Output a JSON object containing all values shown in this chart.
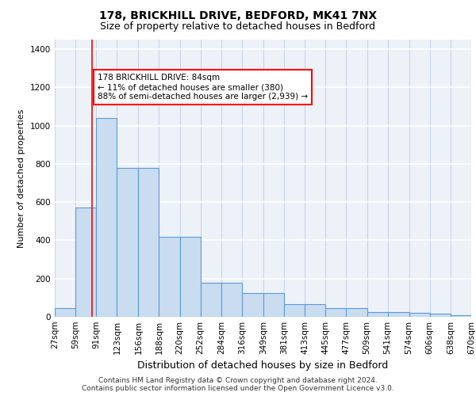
{
  "title1": "178, BRICKHILL DRIVE, BEDFORD, MK41 7NX",
  "title2": "Size of property relative to detached houses in Bedford",
  "xlabel": "Distribution of detached houses by size in Bedford",
  "ylabel": "Number of detached properties",
  "footer": "Contains HM Land Registry data © Crown copyright and database right 2024.\nContains public sector information licensed under the Open Government Licence v3.0.",
  "bin_edges": [
    27,
    59,
    91,
    123,
    156,
    188,
    220,
    252,
    284,
    316,
    349,
    381,
    413,
    445,
    477,
    509,
    541,
    574,
    606,
    638,
    670
  ],
  "bar_heights": [
    45,
    570,
    1040,
    780,
    780,
    420,
    420,
    180,
    180,
    125,
    125,
    65,
    65,
    45,
    45,
    25,
    25,
    20,
    15,
    10
  ],
  "bar_color": "#c9dcf0",
  "bar_edge_color": "#5b9bd5",
  "bg_color": "#edf2f9",
  "grid_color": "#d0d8e8",
  "red_line_x": 84,
  "annotation_text": "178 BRICKHILL DRIVE: 84sqm\n← 11% of detached houses are smaller (380)\n88% of semi-detached houses are larger (2,939) →",
  "ylim": [
    0,
    1450
  ],
  "yticks": [
    0,
    200,
    400,
    600,
    800,
    1000,
    1200,
    1400
  ],
  "title1_fontsize": 10,
  "title2_fontsize": 9,
  "xlabel_fontsize": 9,
  "ylabel_fontsize": 8,
  "tick_fontsize": 7.5,
  "annotation_fontsize": 7.5,
  "footer_fontsize": 6.5
}
